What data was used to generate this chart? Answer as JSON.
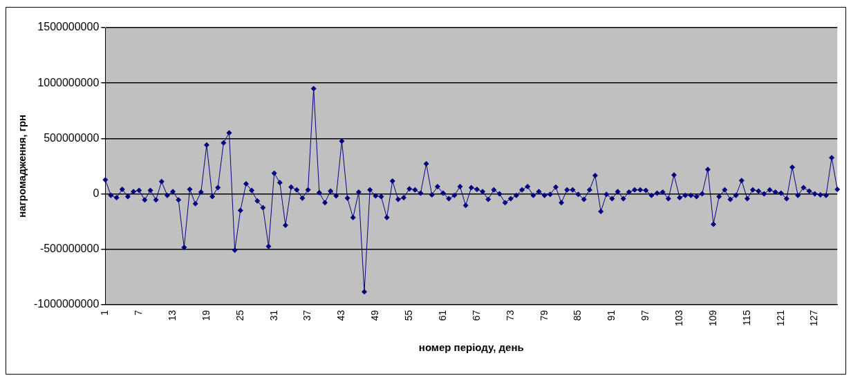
{
  "chart_data": {
    "type": "line",
    "xlabel": "номер періоду, день",
    "ylabel": "нагромадження, грн",
    "categories": [
      "1",
      null,
      null,
      null,
      null,
      null,
      "7",
      null,
      null,
      null,
      null,
      null,
      "13",
      null,
      null,
      null,
      null,
      null,
      "19",
      null,
      null,
      null,
      null,
      null,
      "25",
      null,
      null,
      null,
      null,
      null,
      "31",
      null,
      null,
      null,
      null,
      null,
      "37",
      null,
      null,
      null,
      null,
      null,
      "43",
      null,
      null,
      null,
      null,
      null,
      "49",
      null,
      null,
      null,
      null,
      null,
      "55",
      null,
      null,
      null,
      null,
      null,
      "61",
      null,
      null,
      null,
      null,
      null,
      "67",
      null,
      null,
      null,
      null,
      null,
      "73",
      null,
      null,
      null,
      null,
      null,
      "79",
      null,
      null,
      null,
      null,
      null,
      "85",
      null,
      null,
      null,
      null,
      null,
      "91",
      null,
      null,
      null,
      null,
      null,
      "97",
      null,
      null,
      null,
      null,
      null,
      "103",
      null,
      null,
      null,
      null,
      null,
      "109",
      null,
      null,
      null,
      null,
      null,
      "115",
      null,
      null,
      null,
      null,
      null,
      "121",
      null,
      null,
      null,
      null,
      null,
      "127",
      null,
      null,
      null,
      null
    ],
    "series": [
      {
        "color": "#000080",
        "values": [
          125000000,
          -15000000,
          -35000000,
          40000000,
          -25000000,
          20000000,
          30000000,
          -55000000,
          30000000,
          -55000000,
          110000000,
          -15000000,
          20000000,
          -55000000,
          -485000000,
          40000000,
          -90000000,
          15000000,
          440000000,
          -25000000,
          55000000,
          460000000,
          550000000,
          -510000000,
          -150000000,
          90000000,
          30000000,
          -65000000,
          -125000000,
          -475000000,
          185000000,
          100000000,
          -285000000,
          60000000,
          35000000,
          -40000000,
          35000000,
          950000000,
          10000000,
          -80000000,
          25000000,
          -20000000,
          475000000,
          -40000000,
          -215000000,
          15000000,
          -885000000,
          35000000,
          -20000000,
          -25000000,
          -215000000,
          115000000,
          -50000000,
          -35000000,
          45000000,
          35000000,
          5000000,
          270000000,
          -10000000,
          65000000,
          5000000,
          -45000000,
          -15000000,
          65000000,
          -105000000,
          55000000,
          40000000,
          20000000,
          -50000000,
          35000000,
          0,
          -80000000,
          -45000000,
          -15000000,
          35000000,
          65000000,
          -15000000,
          20000000,
          -15000000,
          -5000000,
          60000000,
          -80000000,
          35000000,
          35000000,
          -5000000,
          -50000000,
          35000000,
          165000000,
          -160000000,
          -5000000,
          -45000000,
          20000000,
          -45000000,
          15000000,
          35000000,
          35000000,
          30000000,
          -15000000,
          5000000,
          15000000,
          -45000000,
          170000000,
          -35000000,
          -15000000,
          -15000000,
          -25000000,
          0,
          220000000,
          -275000000,
          -25000000,
          35000000,
          -50000000,
          -15000000,
          120000000,
          -45000000,
          35000000,
          25000000,
          0,
          35000000,
          15000000,
          5000000,
          -45000000,
          240000000,
          -15000000,
          55000000,
          25000000,
          0,
          -10000000,
          -15000000,
          325000000,
          40000000
        ]
      }
    ],
    "ylim": [
      -1000000000,
      1500000000
    ],
    "yticks": [
      -1000000000,
      -500000000,
      0,
      500000000,
      1000000000,
      1500000000
    ],
    "grid": "y",
    "legend": false,
    "marker": "diamond",
    "line_style": "solid"
  }
}
